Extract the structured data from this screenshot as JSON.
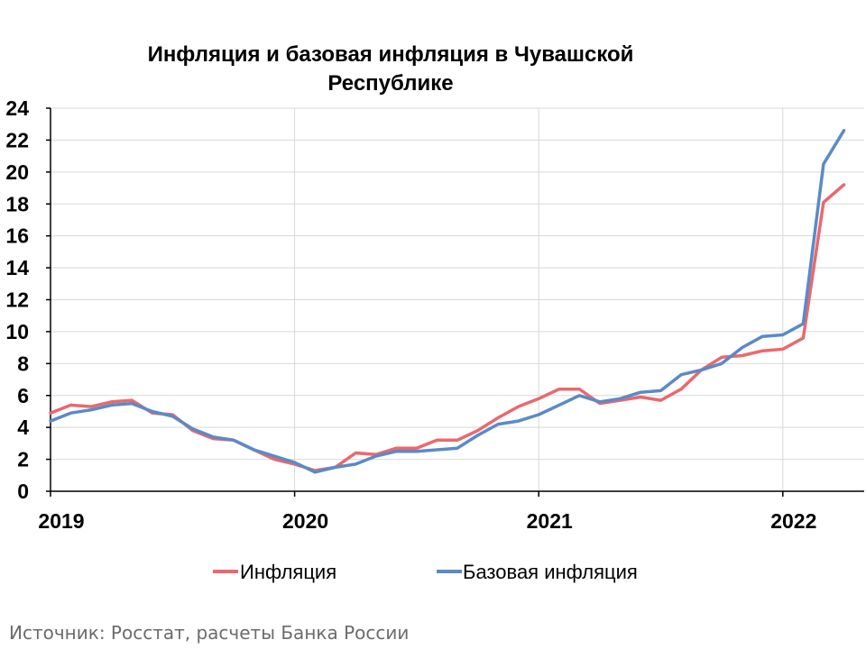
{
  "chart_data": {
    "type": "line",
    "title_lines": [
      "Инфляция и базовая инфляция в Чувашской",
      "Республике"
    ],
    "xlabel": "",
    "ylabel": "",
    "ylim": [
      0,
      24
    ],
    "yticks": [
      0,
      2,
      4,
      6,
      8,
      10,
      12,
      14,
      16,
      18,
      20,
      22,
      24
    ],
    "xticks": [
      "2019",
      "2020",
      "2021",
      "2022"
    ],
    "x_range": [
      "2019-01",
      "2022-04"
    ],
    "grid": true,
    "legend_position": "bottom",
    "x": [
      "2019-01",
      "2019-02",
      "2019-03",
      "2019-04",
      "2019-05",
      "2019-06",
      "2019-07",
      "2019-08",
      "2019-09",
      "2019-10",
      "2019-11",
      "2019-12",
      "2020-01",
      "2020-02",
      "2020-03",
      "2020-04",
      "2020-05",
      "2020-06",
      "2020-07",
      "2020-08",
      "2020-09",
      "2020-10",
      "2020-11",
      "2020-12",
      "2021-01",
      "2021-02",
      "2021-03",
      "2021-04",
      "2021-05",
      "2021-06",
      "2021-07",
      "2021-08",
      "2021-09",
      "2021-10",
      "2021-11",
      "2021-12",
      "2022-01",
      "2022-02",
      "2022-03",
      "2022-04"
    ],
    "series": [
      {
        "name": "Инфляция",
        "color": "#e8696f",
        "values": [
          4.9,
          5.4,
          5.3,
          5.6,
          5.7,
          4.9,
          4.8,
          3.8,
          3.3,
          3.2,
          2.6,
          2.0,
          1.7,
          1.3,
          1.5,
          2.4,
          2.3,
          2.7,
          2.7,
          3.2,
          3.2,
          3.8,
          4.6,
          5.3,
          5.8,
          6.4,
          6.4,
          5.5,
          5.7,
          5.9,
          5.7,
          6.4,
          7.6,
          8.4,
          8.5,
          8.8,
          8.9,
          9.6,
          18.1,
          19.2
        ]
      },
      {
        "name": "Базовая инфляция",
        "color": "#5b8ac6",
        "values": [
          4.4,
          4.9,
          5.1,
          5.4,
          5.5,
          5.0,
          4.7,
          3.9,
          3.4,
          3.2,
          2.6,
          2.2,
          1.8,
          1.2,
          1.5,
          1.7,
          2.2,
          2.5,
          2.5,
          2.6,
          2.7,
          3.5,
          4.2,
          4.4,
          4.8,
          5.4,
          6.0,
          5.6,
          5.8,
          6.2,
          6.3,
          7.3,
          7.6,
          8.0,
          9.0,
          9.7,
          9.8,
          10.5,
          20.5,
          22.6
        ]
      }
    ],
    "source": "Источник: Росстат, расчеты Банка России"
  }
}
